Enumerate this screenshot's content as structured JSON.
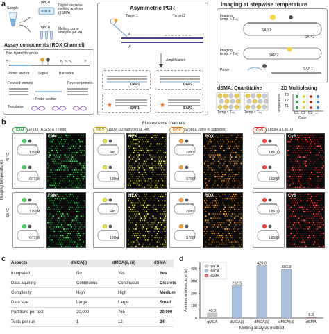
{
  "panel_labels": {
    "a": "a",
    "b": "b",
    "c": "c",
    "d": "d"
  },
  "panel_a": {
    "sample_label": "Sample",
    "dpcr_label": "dPCR",
    "qpcr_label": "qPCR",
    "dsma_label": "Digital stepwise melting analysis (dSMA)",
    "mca_label": "Melting curve analysis (MCA)",
    "asymmetric_title": "Asymmetric PCR",
    "target1": "Target 1",
    "target2": "Target 2",
    "amplification": "Amplification",
    "dap1": "DAP1",
    "dap2": "DAP2",
    "sap1": "SAP1",
    "sap2": "SAP2",
    "assay_title": "Assay components (ROX Channel)",
    "nonhydrolytic": "Non-hydrolytic probe",
    "primer_anchor": "Primer anchor",
    "signal": "Signal",
    "barcodes": "Barcodes",
    "forward_primers": "Forward primers",
    "reverse_primers": "Reverse primers",
    "probe_anchor": "Probe anchor",
    "templates": "Templates",
    "imaging_title": "Imaging at stepwise temperature",
    "imaging_temp_low": "Imaging temp. < Tₘ₁",
    "imaging_temp_high": "Imaging temp. > Tₘ₁",
    "sap_1": "SAP 1",
    "sap_2": "SAP 2",
    "probe": "Probe",
    "dsma_quant": "dSMA: Quantitative",
    "temp_low": "Temp.< Tₘ₁",
    "temp_high": "Temp.> Tₘ₁",
    "multiplex": "2D Multiplexing",
    "temperature_axis": "Temperature",
    "color_axis": "Color",
    "t_levels": [
      "T3",
      "T2",
      "T1"
    ],
    "c_levels": [
      "C1",
      "C2",
      "C3",
      "..."
    ]
  },
  "panel_b": {
    "fluorescence_channels": "Fluorescence channels",
    "imaging_temperatures": "Imaging temperatures",
    "temp_top": "45 °C",
    "temp_bottom": "68 °C",
    "channels": [
      {
        "name": "FAM",
        "targets": "G719X (A,G,S) & T790M",
        "color": "#2e9e44"
      },
      {
        "name": "HEX",
        "targets": "19Del (22 subtypes) & Ref.",
        "color": "#b9a019"
      },
      {
        "name": "ROX",
        "targets": "S768I & 20ins (6 subtypes)",
        "color": "#e07a1a"
      },
      {
        "name": "Cy5",
        "targets": "L858R & L861Q",
        "color": "#d83030"
      }
    ],
    "row1_tags": [
      "T790M",
      "G719X",
      "Ref.",
      "19Del",
      "20ins",
      "S768I",
      "L861Q",
      "L858R"
    ],
    "row2_tags": [
      "T790M",
      "G719X",
      "Ref.",
      "19Del",
      "20ins",
      "S768I",
      "L861Q",
      "L858R"
    ]
  },
  "panel_c": {
    "headers": [
      "Aspects",
      "dMCA(i)",
      "dMCA(ii, iii)",
      "dSMA"
    ],
    "rows": [
      [
        "Integrated",
        "No",
        "Yes",
        "Yes"
      ],
      [
        "Data aquiring",
        "Continuous",
        "Continuous",
        "Discrete"
      ],
      [
        "Complexity",
        "High",
        "High",
        "Medium"
      ],
      [
        "Data size",
        "Large",
        "Large",
        "Small"
      ],
      [
        "Partitions per test",
        "20,000",
        "765",
        "20,000"
      ],
      [
        "Tests per run",
        "1",
        "12",
        "24"
      ]
    ]
  },
  "chart_data": {
    "type": "bar",
    "categories": [
      "qMCA",
      "dMCA(i)",
      "dMCA(ii)",
      "dMCA(iii)",
      "dSMA"
    ],
    "series": [
      {
        "name": "qMCA",
        "values": [
          40.0,
          null,
          null,
          null,
          null
        ],
        "color": "#c8c8c8"
      },
      {
        "name": "dMCA",
        "values": [
          null,
          262.5,
          425.0,
          393.3,
          null
        ],
        "color": "#a9c1de"
      },
      {
        "name": "dSMA",
        "values": [
          null,
          null,
          null,
          null,
          5.3
        ],
        "color": "#e06a6a"
      }
    ],
    "value_labels": [
      "40.0",
      "262.5",
      "425.0",
      "393.3",
      "5.3"
    ],
    "xlabel": "Melting analysis method",
    "ylabel": "Average analysis time (s)",
    "ylim": [
      0,
      450
    ],
    "yticks": [
      0,
      100,
      200,
      300,
      400
    ],
    "legend_position": "top-left",
    "grid": false
  }
}
